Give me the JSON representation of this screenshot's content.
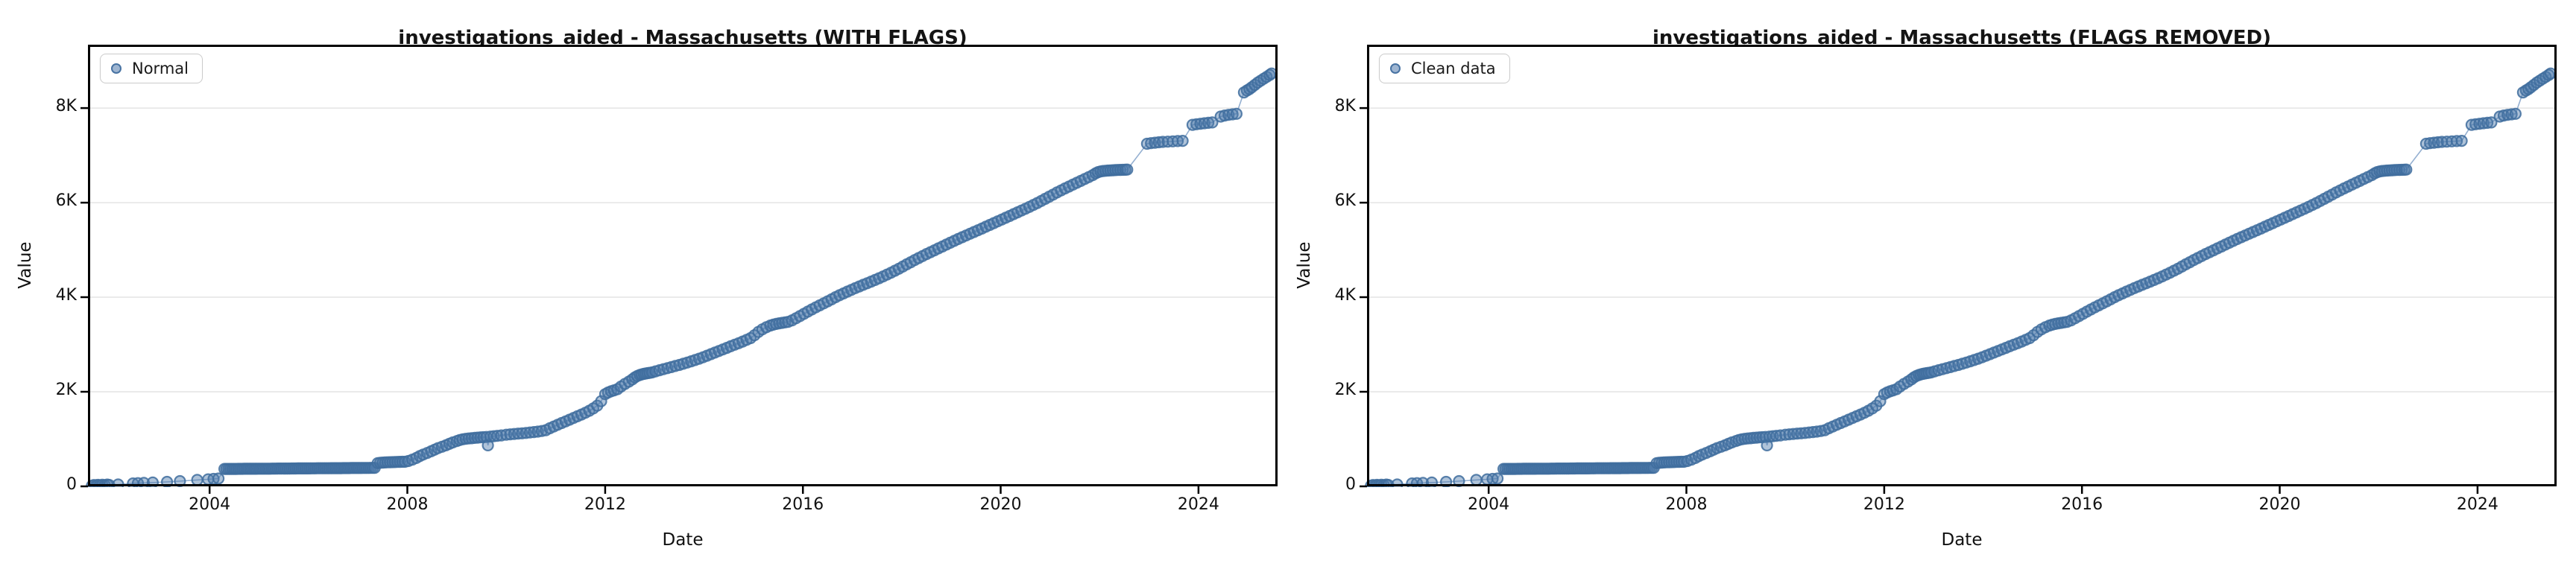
{
  "figure": {
    "background": "#ffffff"
  },
  "chart_data": {
    "type": "scatter",
    "shared_series": true,
    "panels": [
      {
        "title": "investigations_aided - Massachusetts (WITH FLAGS)",
        "legend_label": "Normal",
        "xlabel": "Date",
        "ylabel": "Value",
        "legend_position": "upper left"
      },
      {
        "title": "investigations_aided - Massachusetts (FLAGS REMOVED)",
        "legend_label": "Clean data",
        "xlabel": "Date",
        "ylabel": "Value",
        "legend_position": "upper left"
      }
    ],
    "xlim": [
      2001.54,
      2025.6
    ],
    "ylim": [
      0,
      9340
    ],
    "grid": "horizontal-only",
    "x_ticks": [
      {
        "v": 2004,
        "label": "2004"
      },
      {
        "v": 2008,
        "label": "2008"
      },
      {
        "v": 2012,
        "label": "2012"
      },
      {
        "v": 2016,
        "label": "2016"
      },
      {
        "v": 2020,
        "label": "2020"
      },
      {
        "v": 2024,
        "label": "2024"
      }
    ],
    "y_ticks": [
      {
        "v": 0,
        "label": "0"
      },
      {
        "v": 2000,
        "label": "2K"
      },
      {
        "v": 4000,
        "label": "4K"
      },
      {
        "v": 6000,
        "label": "6K"
      },
      {
        "v": 8000,
        "label": "8K"
      }
    ],
    "colors": {
      "marker_fill": "#4e79ab",
      "marker_edge": "#3f6d9e",
      "line": "#7a9cc6",
      "grid": "#e4e4e4",
      "spine": "#000000",
      "title": "#141414"
    },
    "points": [
      [
        2001.62,
        12
      ],
      [
        2001.66,
        28
      ],
      [
        2001.7,
        18
      ],
      [
        2001.74,
        32
      ],
      [
        2001.78,
        22
      ],
      [
        2001.83,
        35
      ],
      [
        2001.88,
        25
      ],
      [
        2001.93,
        38
      ],
      [
        2001.97,
        30
      ],
      [
        2002.15,
        40
      ],
      [
        2002.45,
        62
      ],
      [
        2002.55,
        68
      ],
      [
        2002.67,
        72
      ],
      [
        2002.85,
        80
      ],
      [
        2003.14,
        95
      ],
      [
        2003.4,
        110
      ],
      [
        2003.75,
        135
      ],
      [
        2003.97,
        148
      ],
      [
        2004.08,
        158
      ],
      [
        2004.18,
        165
      ],
      [
        2004.3,
        368
      ],
      [
        2004.34,
        368
      ],
      [
        2004.38,
        368
      ],
      [
        2004.42,
        368
      ],
      [
        2004.46,
        369
      ],
      [
        2004.5,
        369
      ],
      [
        2004.54,
        369
      ],
      [
        2004.58,
        370
      ],
      [
        2004.62,
        370
      ],
      [
        2004.66,
        370
      ],
      [
        2004.7,
        371
      ],
      [
        2004.74,
        371
      ],
      [
        2004.78,
        371
      ],
      [
        2004.82,
        371
      ],
      [
        2004.86,
        372
      ],
      [
        2004.9,
        372
      ],
      [
        2004.94,
        372
      ],
      [
        2004.98,
        373
      ],
      [
        2005.02,
        373
      ],
      [
        2005.06,
        373
      ],
      [
        2005.1,
        374
      ],
      [
        2005.14,
        374
      ],
      [
        2005.18,
        374
      ],
      [
        2005.22,
        374
      ],
      [
        2005.26,
        375
      ],
      [
        2005.3,
        375
      ],
      [
        2005.34,
        375
      ],
      [
        2005.38,
        376
      ],
      [
        2005.42,
        376
      ],
      [
        2005.46,
        376
      ],
      [
        2005.5,
        377
      ],
      [
        2005.54,
        377
      ],
      [
        2005.58,
        377
      ],
      [
        2005.62,
        377
      ],
      [
        2005.66,
        378
      ],
      [
        2005.7,
        378
      ],
      [
        2005.74,
        378
      ],
      [
        2005.78,
        379
      ],
      [
        2005.82,
        379
      ],
      [
        2005.86,
        379
      ],
      [
        2005.9,
        380
      ],
      [
        2005.94,
        380
      ],
      [
        2005.98,
        380
      ],
      [
        2006.02,
        380
      ],
      [
        2006.06,
        381
      ],
      [
        2006.1,
        381
      ],
      [
        2006.14,
        381
      ],
      [
        2006.18,
        382
      ],
      [
        2006.22,
        382
      ],
      [
        2006.26,
        382
      ],
      [
        2006.3,
        383
      ],
      [
        2006.34,
        383
      ],
      [
        2006.38,
        383
      ],
      [
        2006.42,
        383
      ],
      [
        2006.46,
        384
      ],
      [
        2006.5,
        384
      ],
      [
        2006.54,
        384
      ],
      [
        2006.58,
        385
      ],
      [
        2006.62,
        385
      ],
      [
        2006.66,
        385
      ],
      [
        2006.7,
        386
      ],
      [
        2006.74,
        386
      ],
      [
        2006.78,
        386
      ],
      [
        2006.82,
        386
      ],
      [
        2006.86,
        387
      ],
      [
        2006.9,
        387
      ],
      [
        2006.94,
        387
      ],
      [
        2006.98,
        388
      ],
      [
        2007.02,
        388
      ],
      [
        2007.06,
        388
      ],
      [
        2007.1,
        389
      ],
      [
        2007.14,
        389
      ],
      [
        2007.18,
        389
      ],
      [
        2007.22,
        389
      ],
      [
        2007.26,
        390
      ],
      [
        2007.3,
        390
      ],
      [
        2007.34,
        390
      ],
      [
        2007.4,
        492
      ],
      [
        2007.45,
        498
      ],
      [
        2007.5,
        502
      ],
      [
        2007.55,
        505
      ],
      [
        2007.6,
        508
      ],
      [
        2007.65,
        510
      ],
      [
        2007.7,
        512
      ],
      [
        2007.75,
        514
      ],
      [
        2007.8,
        516
      ],
      [
        2007.85,
        518
      ],
      [
        2007.9,
        519
      ],
      [
        2007.95,
        520
      ],
      [
        2008.02,
        535
      ],
      [
        2008.1,
        565
      ],
      [
        2008.18,
        600
      ],
      [
        2008.25,
        640
      ],
      [
        2008.32,
        672
      ],
      [
        2008.4,
        705
      ],
      [
        2008.48,
        742
      ],
      [
        2008.55,
        775
      ],
      [
        2008.62,
        808
      ],
      [
        2008.7,
        838
      ],
      [
        2008.78,
        868
      ],
      [
        2008.85,
        900
      ],
      [
        2008.92,
        930
      ],
      [
        2009.0,
        958
      ],
      [
        2009.06,
        980
      ],
      [
        2009.12,
        995
      ],
      [
        2009.18,
        1005
      ],
      [
        2009.24,
        1012
      ],
      [
        2009.3,
        1018
      ],
      [
        2009.36,
        1025
      ],
      [
        2009.42,
        1030
      ],
      [
        2009.48,
        1036
      ],
      [
        2009.54,
        1040
      ],
      [
        2009.6,
        1045
      ],
      [
        2009.63,
        868
      ],
      [
        2009.68,
        1052
      ],
      [
        2009.75,
        1060
      ],
      [
        2009.82,
        1068
      ],
      [
        2009.9,
        1078
      ],
      [
        2010.0,
        1092
      ],
      [
        2010.08,
        1100
      ],
      [
        2010.16,
        1108
      ],
      [
        2010.24,
        1115
      ],
      [
        2010.32,
        1122
      ],
      [
        2010.4,
        1130
      ],
      [
        2010.48,
        1138
      ],
      [
        2010.56,
        1148
      ],
      [
        2010.64,
        1158
      ],
      [
        2010.72,
        1170
      ],
      [
        2010.8,
        1188
      ],
      [
        2010.88,
        1228
      ],
      [
        2010.96,
        1265
      ],
      [
        2011.04,
        1302
      ],
      [
        2011.12,
        1338
      ],
      [
        2011.2,
        1374
      ],
      [
        2011.28,
        1410
      ],
      [
        2011.36,
        1446
      ],
      [
        2011.44,
        1482
      ],
      [
        2011.52,
        1518
      ],
      [
        2011.6,
        1556
      ],
      [
        2011.68,
        1598
      ],
      [
        2011.76,
        1648
      ],
      [
        2011.84,
        1705
      ],
      [
        2011.92,
        1800
      ],
      [
        2012.0,
        1950
      ],
      [
        2012.06,
        1985
      ],
      [
        2012.12,
        2010
      ],
      [
        2012.18,
        2030
      ],
      [
        2012.25,
        2055
      ],
      [
        2012.32,
        2110
      ],
      [
        2012.4,
        2165
      ],
      [
        2012.48,
        2215
      ],
      [
        2012.55,
        2262
      ],
      [
        2012.6,
        2305
      ],
      [
        2012.65,
        2335
      ],
      [
        2012.7,
        2355
      ],
      [
        2012.74,
        2368
      ],
      [
        2012.78,
        2378
      ],
      [
        2012.82,
        2386
      ],
      [
        2012.86,
        2394
      ],
      [
        2012.9,
        2400
      ],
      [
        2012.95,
        2410
      ],
      [
        2013.02,
        2432
      ],
      [
        2013.1,
        2456
      ],
      [
        2013.18,
        2478
      ],
      [
        2013.26,
        2500
      ],
      [
        2013.34,
        2522
      ],
      [
        2013.42,
        2545
      ],
      [
        2013.5,
        2568
      ],
      [
        2013.58,
        2592
      ],
      [
        2013.66,
        2618
      ],
      [
        2013.74,
        2645
      ],
      [
        2013.82,
        2672
      ],
      [
        2013.9,
        2700
      ],
      [
        2013.98,
        2730
      ],
      [
        2014.06,
        2762
      ],
      [
        2014.14,
        2795
      ],
      [
        2014.22,
        2828
      ],
      [
        2014.3,
        2862
      ],
      [
        2014.38,
        2895
      ],
      [
        2014.46,
        2928
      ],
      [
        2014.54,
        2962
      ],
      [
        2014.62,
        2995
      ],
      [
        2014.7,
        3028
      ],
      [
        2014.78,
        3062
      ],
      [
        2014.86,
        3098
      ],
      [
        2014.94,
        3135
      ],
      [
        2015.02,
        3195
      ],
      [
        2015.1,
        3265
      ],
      [
        2015.18,
        3320
      ],
      [
        2015.26,
        3365
      ],
      [
        2015.34,
        3400
      ],
      [
        2015.4,
        3420
      ],
      [
        2015.46,
        3435
      ],
      [
        2015.52,
        3448
      ],
      [
        2015.58,
        3458
      ],
      [
        2015.64,
        3468
      ],
      [
        2015.7,
        3478
      ],
      [
        2015.78,
        3510
      ],
      [
        2015.86,
        3555
      ],
      [
        2015.94,
        3600
      ],
      [
        2016.02,
        3648
      ],
      [
        2016.1,
        3695
      ],
      [
        2016.18,
        3740
      ],
      [
        2016.26,
        3785
      ],
      [
        2016.34,
        3828
      ],
      [
        2016.42,
        3870
      ],
      [
        2016.5,
        3912
      ],
      [
        2016.58,
        3955
      ],
      [
        2016.66,
        4000
      ],
      [
        2016.74,
        4042
      ],
      [
        2016.82,
        4080
      ],
      [
        2016.9,
        4118
      ],
      [
        2016.98,
        4155
      ],
      [
        2017.06,
        4192
      ],
      [
        2017.14,
        4228
      ],
      [
        2017.22,
        4262
      ],
      [
        2017.3,
        4295
      ],
      [
        2017.38,
        4330
      ],
      [
        2017.46,
        4365
      ],
      [
        2017.54,
        4400
      ],
      [
        2017.62,
        4438
      ],
      [
        2017.7,
        4478
      ],
      [
        2017.78,
        4518
      ],
      [
        2017.86,
        4560
      ],
      [
        2017.94,
        4602
      ],
      [
        2018.02,
        4648
      ],
      [
        2018.1,
        4695
      ],
      [
        2018.18,
        4740
      ],
      [
        2018.26,
        4785
      ],
      [
        2018.34,
        4828
      ],
      [
        2018.42,
        4870
      ],
      [
        2018.5,
        4912
      ],
      [
        2018.58,
        4952
      ],
      [
        2018.66,
        4992
      ],
      [
        2018.74,
        5032
      ],
      [
        2018.82,
        5072
      ],
      [
        2018.9,
        5112
      ],
      [
        2018.98,
        5152
      ],
      [
        2019.06,
        5192
      ],
      [
        2019.14,
        5230
      ],
      [
        2019.22,
        5268
      ],
      [
        2019.3,
        5305
      ],
      [
        2019.38,
        5342
      ],
      [
        2019.46,
        5378
      ],
      [
        2019.54,
        5415
      ],
      [
        2019.62,
        5452
      ],
      [
        2019.7,
        5490
      ],
      [
        2019.78,
        5528
      ],
      [
        2019.86,
        5566
      ],
      [
        2019.94,
        5604
      ],
      [
        2020.02,
        5642
      ],
      [
        2020.1,
        5680
      ],
      [
        2020.18,
        5718
      ],
      [
        2020.26,
        5756
      ],
      [
        2020.34,
        5794
      ],
      [
        2020.42,
        5832
      ],
      [
        2020.5,
        5870
      ],
      [
        2020.58,
        5910
      ],
      [
        2020.66,
        5950
      ],
      [
        2020.74,
        5992
      ],
      [
        2020.82,
        6035
      ],
      [
        2020.9,
        6080
      ],
      [
        2020.98,
        6125
      ],
      [
        2021.06,
        6170
      ],
      [
        2021.14,
        6215
      ],
      [
        2021.22,
        6258
      ],
      [
        2021.3,
        6300
      ],
      [
        2021.38,
        6340
      ],
      [
        2021.46,
        6380
      ],
      [
        2021.54,
        6420
      ],
      [
        2021.62,
        6460
      ],
      [
        2021.7,
        6500
      ],
      [
        2021.78,
        6540
      ],
      [
        2021.86,
        6580
      ],
      [
        2021.92,
        6620
      ],
      [
        2021.97,
        6645
      ],
      [
        2022.02,
        6660
      ],
      [
        2022.07,
        6668
      ],
      [
        2022.12,
        6674
      ],
      [
        2022.17,
        6678
      ],
      [
        2022.22,
        6682
      ],
      [
        2022.27,
        6685
      ],
      [
        2022.32,
        6688
      ],
      [
        2022.37,
        6690
      ],
      [
        2022.42,
        6692
      ],
      [
        2022.47,
        6694
      ],
      [
        2022.52,
        6696
      ],
      [
        2022.56,
        6698
      ],
      [
        2022.96,
        7245
      ],
      [
        2023.04,
        7258
      ],
      [
        2023.12,
        7268
      ],
      [
        2023.2,
        7276
      ],
      [
        2023.28,
        7284
      ],
      [
        2023.38,
        7290
      ],
      [
        2023.48,
        7296
      ],
      [
        2023.58,
        7302
      ],
      [
        2023.68,
        7306
      ],
      [
        2023.88,
        7645
      ],
      [
        2023.96,
        7658
      ],
      [
        2024.04,
        7668
      ],
      [
        2024.12,
        7678
      ],
      [
        2024.2,
        7688
      ],
      [
        2024.28,
        7696
      ],
      [
        2024.45,
        7820
      ],
      [
        2024.53,
        7842
      ],
      [
        2024.61,
        7856
      ],
      [
        2024.69,
        7868
      ],
      [
        2024.77,
        7878
      ],
      [
        2024.92,
        8330
      ],
      [
        2024.98,
        8372
      ],
      [
        2025.03,
        8402
      ],
      [
        2025.08,
        8440
      ],
      [
        2025.14,
        8490
      ],
      [
        2025.2,
        8540
      ],
      [
        2025.26,
        8580
      ],
      [
        2025.32,
        8620
      ],
      [
        2025.38,
        8660
      ],
      [
        2025.44,
        8700
      ],
      [
        2025.48,
        8730
      ]
    ]
  }
}
